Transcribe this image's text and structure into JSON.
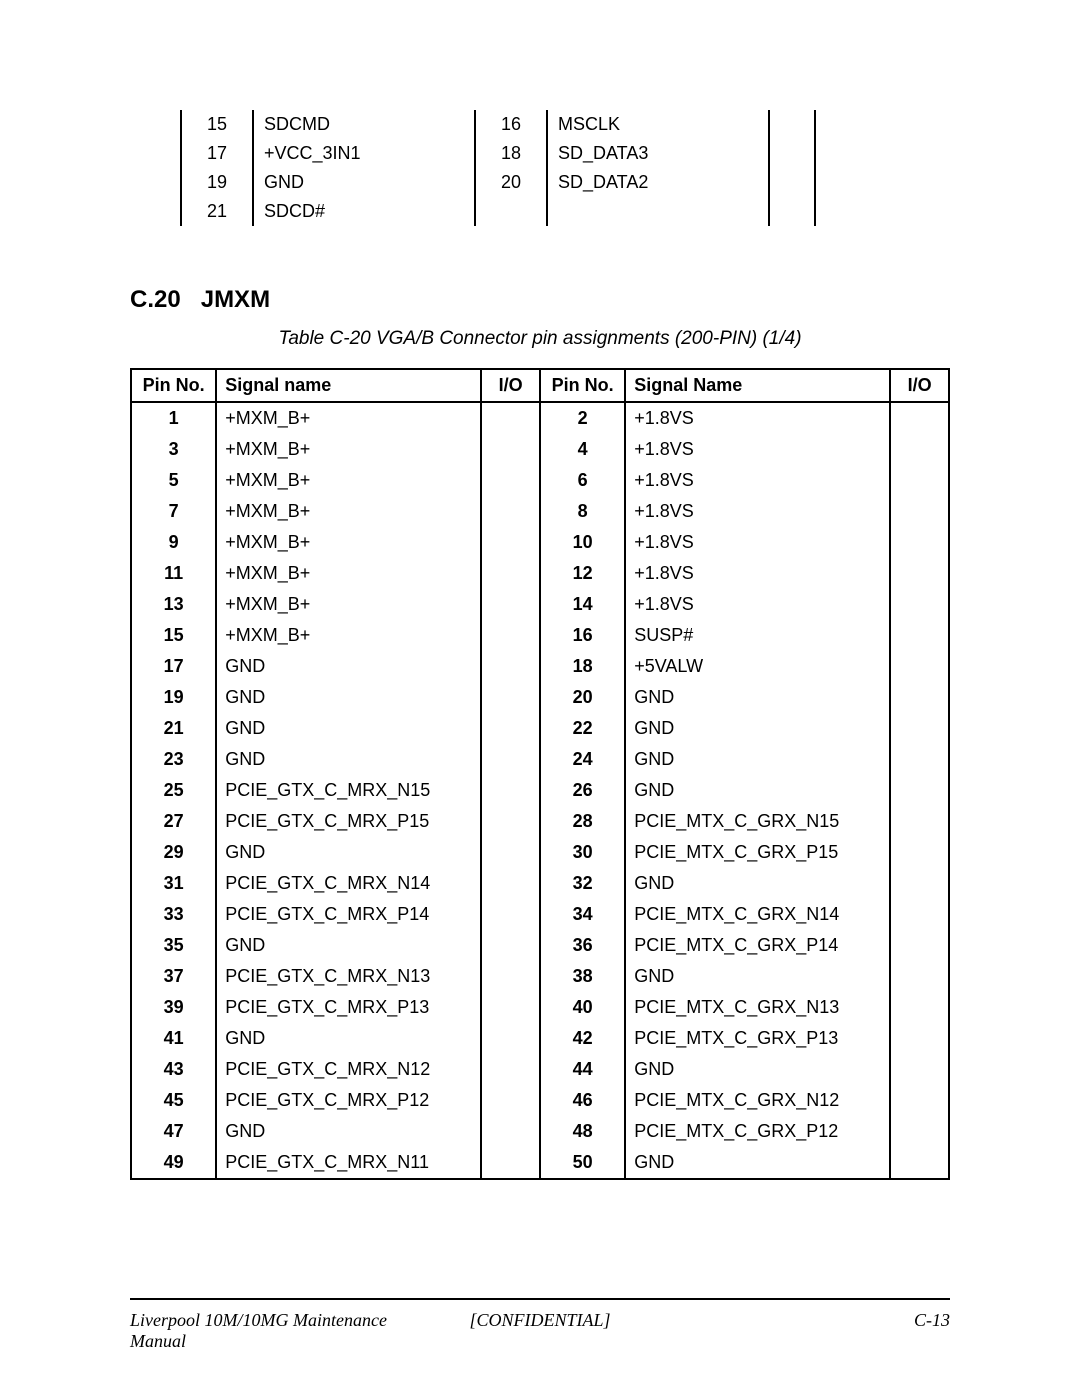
{
  "fragment_table": {
    "rows": [
      {
        "p1": "15",
        "s1": "SDCMD",
        "p2": "16",
        "s2": "MSCLK"
      },
      {
        "p1": "17",
        "s1": "+VCC_3IN1",
        "p2": "18",
        "s2": "SD_DATA3"
      },
      {
        "p1": "19",
        "s1": "GND",
        "p2": "20",
        "s2": "SD_DATA2"
      },
      {
        "p1": "21",
        "s1": "SDCD#",
        "p2": "",
        "s2": ""
      }
    ]
  },
  "section": {
    "number": "C.20",
    "title": "JMXM"
  },
  "table_caption": "Table C-20 VGA/B Connector pin assignments (200-PIN) (1/4)",
  "main_table": {
    "headers": {
      "pin_a": "Pin No.",
      "sig_a": "Signal name",
      "io_a": "I/O",
      "pin_b": "Pin No.",
      "sig_b": "Signal Name",
      "io_b": "I/O"
    },
    "rows": [
      {
        "p1": "1",
        "s1": "+MXM_B+",
        "p2": "2",
        "s2": "+1.8VS"
      },
      {
        "p1": "3",
        "s1": "+MXM_B+",
        "p2": "4",
        "s2": "+1.8VS"
      },
      {
        "p1": "5",
        "s1": "+MXM_B+",
        "p2": "6",
        "s2": "+1.8VS"
      },
      {
        "p1": "7",
        "s1": "+MXM_B+",
        "p2": "8",
        "s2": "+1.8VS"
      },
      {
        "p1": "9",
        "s1": "+MXM_B+",
        "p2": "10",
        "s2": "+1.8VS"
      },
      {
        "p1": "11",
        "s1": "+MXM_B+",
        "p2": "12",
        "s2": "+1.8VS"
      },
      {
        "p1": "13",
        "s1": "+MXM_B+",
        "p2": "14",
        "s2": "+1.8VS"
      },
      {
        "p1": "15",
        "s1": "+MXM_B+",
        "p2": "16",
        "s2": "SUSP#"
      },
      {
        "p1": "17",
        "s1": "GND",
        "p2": "18",
        "s2": "+5VALW"
      },
      {
        "p1": "19",
        "s1": "GND",
        "p2": "20",
        "s2": "GND"
      },
      {
        "p1": "21",
        "s1": "GND",
        "p2": "22",
        "s2": "GND"
      },
      {
        "p1": "23",
        "s1": "GND",
        "p2": "24",
        "s2": "GND"
      },
      {
        "p1": "25",
        "s1": "PCIE_GTX_C_MRX_N15",
        "p2": "26",
        "s2": "GND"
      },
      {
        "p1": "27",
        "s1": "PCIE_GTX_C_MRX_P15",
        "p2": "28",
        "s2": "PCIE_MTX_C_GRX_N15"
      },
      {
        "p1": "29",
        "s1": "GND",
        "p2": "30",
        "s2": "PCIE_MTX_C_GRX_P15"
      },
      {
        "p1": "31",
        "s1": "PCIE_GTX_C_MRX_N14",
        "p2": "32",
        "s2": "GND"
      },
      {
        "p1": "33",
        "s1": "PCIE_GTX_C_MRX_P14",
        "p2": "34",
        "s2": "PCIE_MTX_C_GRX_N14"
      },
      {
        "p1": "35",
        "s1": "GND",
        "p2": "36",
        "s2": "PCIE_MTX_C_GRX_P14"
      },
      {
        "p1": "37",
        "s1": "PCIE_GTX_C_MRX_N13",
        "p2": "38",
        "s2": "GND"
      },
      {
        "p1": "39",
        "s1": "PCIE_GTX_C_MRX_P13",
        "p2": "40",
        "s2": "PCIE_MTX_C_GRX_N13"
      },
      {
        "p1": "41",
        "s1": "GND",
        "p2": "42",
        "s2": "PCIE_MTX_C_GRX_P13"
      },
      {
        "p1": "43",
        "s1": "PCIE_GTX_C_MRX_N12",
        "p2": "44",
        "s2": "GND"
      },
      {
        "p1": "45",
        "s1": "PCIE_GTX_C_MRX_P12",
        "p2": "46",
        "s2": "PCIE_MTX_C_GRX_N12"
      },
      {
        "p1": "47",
        "s1": "GND",
        "p2": "48",
        "s2": "PCIE_MTX_C_GRX_P12"
      },
      {
        "p1": "49",
        "s1": "PCIE_GTX_C_MRX_N11",
        "p2": "50",
        "s2": "GND"
      }
    ]
  },
  "footer": {
    "left": "Liverpool 10M/10MG Maintenance Manual",
    "center": "[CONFIDENTIAL]",
    "right": "C-13"
  }
}
